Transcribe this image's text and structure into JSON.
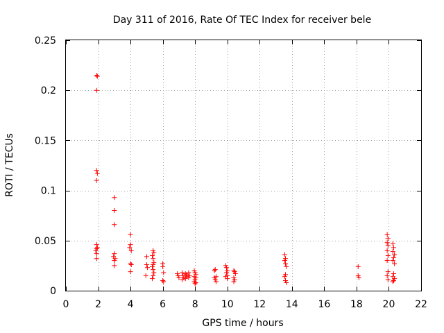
{
  "chart_data": {
    "type": "scatter",
    "title": "Day 311 of 2016, Rate Of TEC Index for receiver bele",
    "xlabel": "GPS time / hours",
    "ylabel": "ROTI / TECUs",
    "xlim": [
      0,
      22
    ],
    "ylim": [
      0,
      0.25
    ],
    "xticks": [
      0,
      2,
      4,
      6,
      8,
      10,
      12,
      14,
      16,
      18,
      20,
      22
    ],
    "xtick_labels": [
      "0",
      "2",
      "4",
      "6",
      "8",
      "10",
      "12",
      "14",
      "16",
      "18",
      "20",
      "22"
    ],
    "yticks": [
      0,
      0.05,
      0.1,
      0.15,
      0.2,
      0.25
    ],
    "ytick_labels": [
      "0",
      "0.05",
      "0.1",
      "0.15",
      "0.2",
      "0.25"
    ],
    "grid": true,
    "marker": "+",
    "color": "#ff0000",
    "series": [
      {
        "name": "ROTI",
        "points": [
          [
            1.9,
            0.215
          ],
          [
            1.95,
            0.214
          ],
          [
            1.9,
            0.2
          ],
          [
            1.9,
            0.12
          ],
          [
            1.95,
            0.117
          ],
          [
            1.9,
            0.11
          ],
          [
            1.9,
            0.046
          ],
          [
            1.95,
            0.043
          ],
          [
            1.9,
            0.042
          ],
          [
            1.85,
            0.04
          ],
          [
            1.9,
            0.037
          ],
          [
            1.9,
            0.032
          ],
          [
            3.0,
            0.093
          ],
          [
            3.0,
            0.08
          ],
          [
            3.0,
            0.066
          ],
          [
            3.0,
            0.037
          ],
          [
            2.95,
            0.034
          ],
          [
            3.05,
            0.032
          ],
          [
            3.0,
            0.03
          ],
          [
            3.0,
            0.025
          ],
          [
            4.0,
            0.056
          ],
          [
            4.0,
            0.046
          ],
          [
            3.95,
            0.043
          ],
          [
            4.05,
            0.04
          ],
          [
            4.0,
            0.027
          ],
          [
            4.05,
            0.026
          ],
          [
            4.0,
            0.019
          ],
          [
            5.0,
            0.034
          ],
          [
            5.0,
            0.026
          ],
          [
            5.05,
            0.023
          ],
          [
            4.95,
            0.015
          ],
          [
            5.4,
            0.04
          ],
          [
            5.45,
            0.038
          ],
          [
            5.35,
            0.035
          ],
          [
            5.4,
            0.032
          ],
          [
            5.45,
            0.028
          ],
          [
            5.4,
            0.026
          ],
          [
            5.35,
            0.024
          ],
          [
            5.4,
            0.021
          ],
          [
            5.45,
            0.018
          ],
          [
            5.4,
            0.015
          ],
          [
            5.35,
            0.012
          ],
          [
            6.0,
            0.027
          ],
          [
            6.0,
            0.024
          ],
          [
            6.05,
            0.018
          ],
          [
            6.0,
            0.01
          ],
          [
            6.05,
            0.009
          ],
          [
            6.9,
            0.017
          ],
          [
            6.95,
            0.015
          ],
          [
            7.0,
            0.013
          ],
          [
            7.2,
            0.018
          ],
          [
            7.25,
            0.015
          ],
          [
            7.3,
            0.013
          ],
          [
            7.2,
            0.011
          ],
          [
            7.4,
            0.017
          ],
          [
            7.45,
            0.016
          ],
          [
            7.5,
            0.014
          ],
          [
            7.4,
            0.012
          ],
          [
            7.6,
            0.018
          ],
          [
            7.65,
            0.015
          ],
          [
            7.6,
            0.013
          ],
          [
            7.95,
            0.02
          ],
          [
            8.0,
            0.018
          ],
          [
            8.05,
            0.016
          ],
          [
            7.95,
            0.014
          ],
          [
            8.05,
            0.013
          ],
          [
            8.0,
            0.011
          ],
          [
            7.95,
            0.009
          ],
          [
            8.05,
            0.008
          ],
          [
            8.0,
            0.007
          ],
          [
            9.2,
            0.02
          ],
          [
            9.25,
            0.021
          ],
          [
            9.3,
            0.014
          ],
          [
            9.2,
            0.013
          ],
          [
            9.25,
            0.011
          ],
          [
            9.3,
            0.009
          ],
          [
            9.9,
            0.025
          ],
          [
            9.95,
            0.023
          ],
          [
            10.0,
            0.02
          ],
          [
            9.95,
            0.018
          ],
          [
            10.0,
            0.015
          ],
          [
            9.9,
            0.014
          ],
          [
            10.0,
            0.012
          ],
          [
            10.4,
            0.02
          ],
          [
            10.45,
            0.019
          ],
          [
            10.5,
            0.017
          ],
          [
            10.4,
            0.013
          ],
          [
            10.45,
            0.011
          ],
          [
            10.4,
            0.009
          ],
          [
            13.55,
            0.036
          ],
          [
            13.6,
            0.032
          ],
          [
            13.55,
            0.03
          ],
          [
            13.6,
            0.027
          ],
          [
            13.65,
            0.024
          ],
          [
            13.6,
            0.016
          ],
          [
            13.55,
            0.014
          ],
          [
            13.6,
            0.01
          ],
          [
            13.65,
            0.008
          ],
          [
            18.1,
            0.024
          ],
          [
            18.1,
            0.015
          ],
          [
            18.15,
            0.013
          ],
          [
            19.9,
            0.056
          ],
          [
            19.95,
            0.052
          ],
          [
            19.9,
            0.048
          ],
          [
            19.95,
            0.045
          ],
          [
            19.9,
            0.04
          ],
          [
            19.95,
            0.035
          ],
          [
            19.9,
            0.03
          ],
          [
            19.95,
            0.019
          ],
          [
            19.9,
            0.015
          ],
          [
            19.95,
            0.011
          ],
          [
            20.25,
            0.047
          ],
          [
            20.3,
            0.043
          ],
          [
            20.25,
            0.039
          ],
          [
            20.35,
            0.036
          ],
          [
            20.3,
            0.033
          ],
          [
            20.25,
            0.03
          ],
          [
            20.35,
            0.027
          ],
          [
            20.3,
            0.017
          ],
          [
            20.25,
            0.014
          ],
          [
            20.35,
            0.012
          ],
          [
            20.3,
            0.01
          ],
          [
            20.25,
            0.009
          ]
        ]
      }
    ]
  }
}
